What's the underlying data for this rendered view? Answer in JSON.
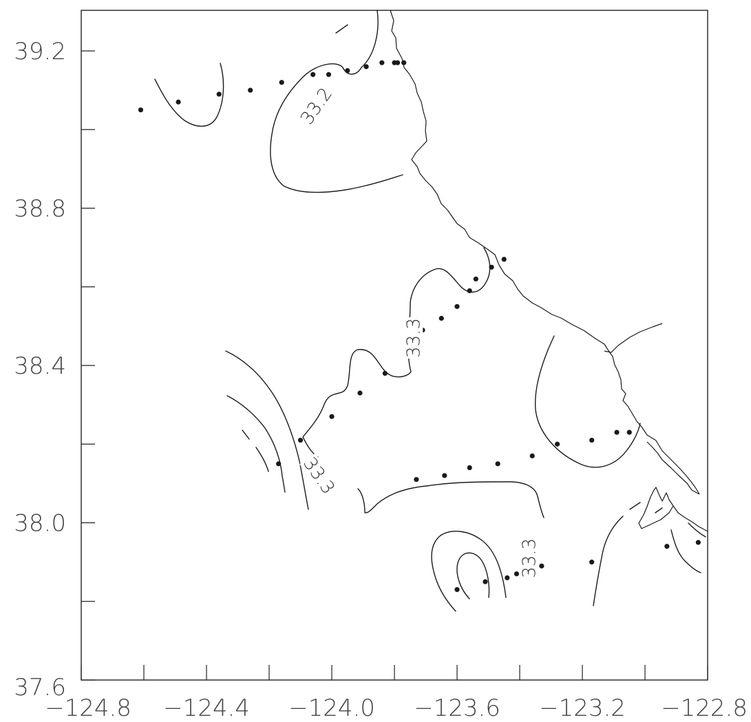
{
  "map": {
    "x_ticks": [
      {
        "value": -124.8,
        "label": "−124.8"
      },
      {
        "value": -124.4,
        "label": "−124.4"
      },
      {
        "value": -124.0,
        "label": "−124.0"
      },
      {
        "value": -123.6,
        "label": "−123.6"
      },
      {
        "value": -123.2,
        "label": "−123.2"
      },
      {
        "value": -122.8,
        "label": "−122.8"
      }
    ],
    "y_ticks": [
      {
        "value": 37.6,
        "label": "37.6"
      },
      {
        "value": 38.0,
        "label": "38.0"
      },
      {
        "value": 38.4,
        "label": "38.4"
      },
      {
        "value": 38.8,
        "label": "38.8"
      },
      {
        "value": 39.2,
        "label": "39.2"
      }
    ],
    "x_range": [
      -124.8,
      -122.8
    ],
    "y_range": [
      37.6,
      39.3
    ],
    "contour_labels": [
      {
        "text": "33.2",
        "lon": -124.05,
        "lat": 39.06,
        "angle": -55
      },
      {
        "text": "33.3",
        "lon": -123.74,
        "lat": 38.47,
        "angle": -90
      },
      {
        "text": "33.3",
        "lon": -124.04,
        "lat": 38.12,
        "angle": 55
      },
      {
        "text": "33.3",
        "lon": -123.37,
        "lat": 37.91,
        "angle": -90
      }
    ],
    "stations": [
      [
        -124.61,
        39.05
      ],
      [
        -124.49,
        39.07
      ],
      [
        -124.36,
        39.09
      ],
      [
        -124.26,
        39.1
      ],
      [
        -124.16,
        39.12
      ],
      [
        -124.06,
        39.14
      ],
      [
        -124.01,
        39.14
      ],
      [
        -123.95,
        39.15
      ],
      [
        -123.89,
        39.16
      ],
      [
        -123.84,
        39.17
      ],
      [
        -123.8,
        39.17
      ],
      [
        -123.79,
        39.17
      ],
      [
        -123.77,
        39.17
      ],
      [
        -123.45,
        38.67
      ],
      [
        -123.49,
        38.65
      ],
      [
        -123.54,
        38.62
      ],
      [
        -123.56,
        38.59
      ],
      [
        -123.6,
        38.55
      ],
      [
        -123.65,
        38.52
      ],
      [
        -123.71,
        38.49
      ],
      [
        -123.76,
        38.44
      ],
      [
        -123.83,
        38.38
      ],
      [
        -123.91,
        38.33
      ],
      [
        -124.0,
        38.27
      ],
      [
        -124.1,
        38.21
      ],
      [
        -124.17,
        38.15
      ],
      [
        -123.73,
        38.11
      ],
      [
        -123.64,
        38.12
      ],
      [
        -123.56,
        38.14
      ],
      [
        -123.47,
        38.15
      ],
      [
        -123.36,
        38.17
      ],
      [
        -123.28,
        38.2
      ],
      [
        -123.17,
        38.21
      ],
      [
        -123.09,
        38.23
      ],
      [
        -123.05,
        38.23
      ],
      [
        -122.93,
        37.94
      ],
      [
        -122.83,
        37.95
      ],
      [
        -123.17,
        37.9
      ],
      [
        -123.33,
        37.89
      ],
      [
        -123.41,
        37.87
      ],
      [
        -123.44,
        37.86
      ],
      [
        -123.51,
        37.85
      ],
      [
        -123.6,
        37.83
      ]
    ]
  }
}
